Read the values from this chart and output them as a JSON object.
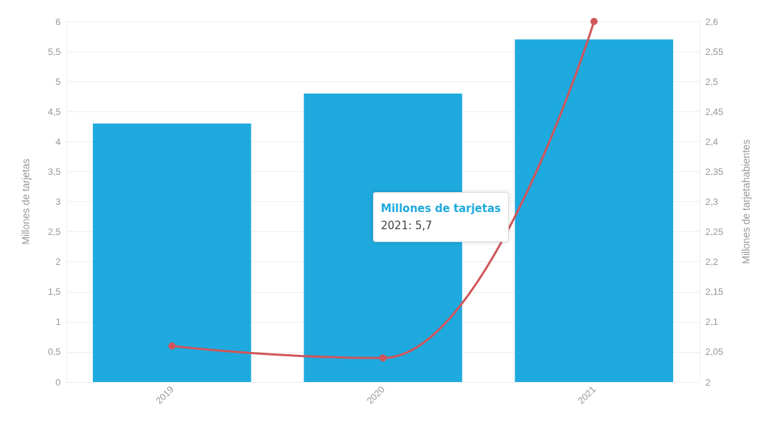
{
  "chart_data": {
    "type": "bar",
    "categories": [
      "2019",
      "2020",
      "2021"
    ],
    "series": [
      {
        "color": "#1eaade",
        "values": [
          4.3,
          4.8,
          5.7
        ]
      },
      {
        "type": "line",
        "axis": "y2",
        "color": "#d0555a",
        "values": [
          2.06,
          2.04,
          2.6
        ]
      }
    ],
    "ylabel": "Millones de tarjetas",
    "y2label": "Millones de tarjetahabientes",
    "ylim": [
      0,
      6
    ],
    "yticks": [
      0,
      {
        "value": 0.5,
        "label": "0,5"
      },
      1,
      {
        "value": 1.5,
        "label": "1,5"
      },
      2,
      {
        "value": 2.5,
        "label": "2,5"
      },
      3,
      {
        "value": 3.5,
        "label": "3,5"
      },
      4,
      {
        "value": 4.5,
        "label": "4,5"
      },
      5,
      {
        "value": 5.5,
        "label": "5,5"
      },
      6
    ],
    "y2lim": [
      2,
      2.6
    ],
    "y2ticks": [
      2,
      {
        "value": 2.05,
        "label": "2,05"
      },
      {
        "value": 2.1,
        "label": "2,1"
      },
      {
        "value": 2.15,
        "label": "2,15"
      },
      {
        "value": 2.2,
        "label": "2,2"
      },
      {
        "value": 2.25,
        "label": "2,25"
      },
      {
        "value": 2.3,
        "label": "2,3"
      },
      {
        "value": 2.35,
        "label": "2,35"
      },
      {
        "value": 2.4,
        "label": "2,4"
      },
      {
        "value": 2.45,
        "label": "2,45"
      },
      {
        "value": 2.5,
        "label": "2,5"
      },
      {
        "value": 2.55,
        "label": "2,55"
      },
      {
        "value": 2.6,
        "label": "2,6"
      }
    ],
    "grid": "y",
    "marker": "circle",
    "line_style": "solid",
    "annotations": [
      "Millones de tarjetas\n2021: 5,7"
    ]
  }
}
